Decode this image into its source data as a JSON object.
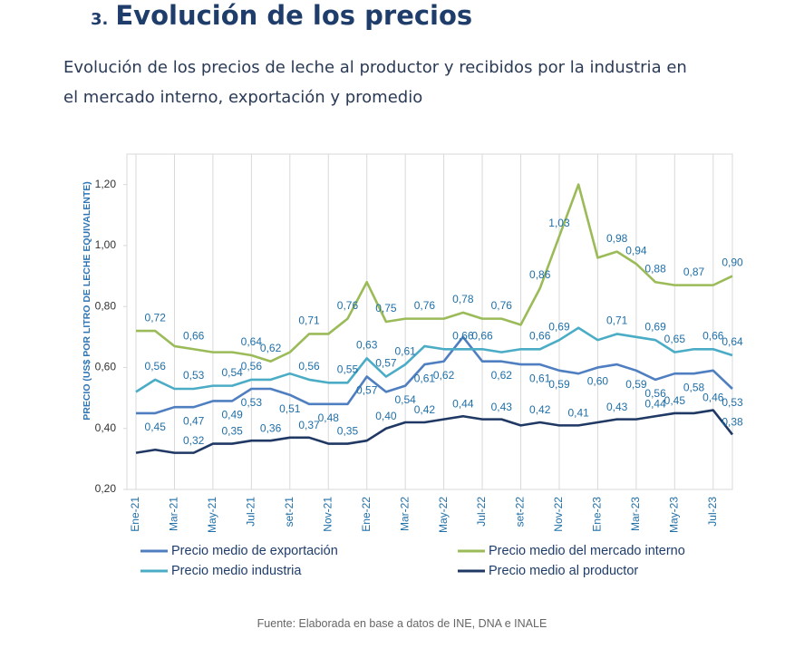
{
  "heading": {
    "number": "3.",
    "title": "Evolución de los precios"
  },
  "subtitle": [
    "Evolución de los precios de leche al productor y recibidos por la industria en",
    "el mercado interno, exportación y promedio"
  ],
  "chart_data": {
    "type": "line",
    "y_label": "PRECIO (US$ POR LITRO DE LECHE EQUIVALENTE)",
    "categories": [
      "Ene-21",
      null,
      "Mar-21",
      null,
      "May-21",
      null,
      "Jul-21",
      null,
      "set-21",
      null,
      "Nov-21",
      null,
      "Ene-22",
      null,
      "Mar-22",
      null,
      "May-22",
      null,
      "Jul-22",
      null,
      "set-22",
      null,
      "Nov-22",
      null,
      "Ene-23",
      null,
      "Mar-23",
      null,
      "May-23",
      null,
      "Jul-23",
      null
    ],
    "ylim": [
      0.2,
      1.3
    ],
    "yticks": [
      {
        "value": 0.2,
        "label": "0,20"
      },
      {
        "value": 0.4,
        "label": "0,40"
      },
      {
        "value": 0.6,
        "label": "0,60"
      },
      {
        "value": 0.8,
        "label": "0,80"
      },
      {
        "value": 1.0,
        "label": "1,00"
      },
      {
        "value": 1.2,
        "label": "1,20"
      }
    ],
    "grid": "x",
    "series": [
      {
        "name": "Precio medio de exportación",
        "color": "#4f7fc0",
        "values": [
          0.45,
          0.45,
          0.47,
          0.47,
          0.49,
          0.49,
          0.53,
          0.53,
          0.51,
          0.48,
          0.48,
          0.48,
          0.57,
          0.52,
          0.54,
          0.61,
          0.62,
          0.7,
          0.62,
          0.62,
          0.61,
          0.61,
          0.59,
          0.58,
          0.6,
          0.61,
          0.59,
          0.56,
          0.58,
          0.58,
          0.59,
          0.53
        ],
        "value_labels": [
          null,
          "0,45",
          null,
          "0,47",
          null,
          "0,49",
          "0,53",
          null,
          "0,51",
          null,
          "0,48",
          null,
          "0,57",
          null,
          "0,54",
          "0,61",
          "0,62",
          null,
          null,
          "0,62",
          null,
          "0,61",
          "0,59",
          null,
          "0,60",
          null,
          "0,59",
          "0,56",
          null,
          "0,58",
          null,
          "0,53"
        ]
      },
      {
        "name": "Precio medio del mercado interno",
        "color": "#9bbb59",
        "values": [
          0.72,
          0.72,
          0.67,
          0.66,
          0.65,
          0.65,
          0.64,
          0.62,
          0.65,
          0.71,
          0.71,
          0.76,
          0.88,
          0.75,
          0.76,
          0.76,
          0.76,
          0.78,
          0.76,
          0.76,
          0.74,
          0.86,
          1.03,
          1.2,
          0.96,
          0.98,
          0.94,
          0.88,
          0.87,
          0.87,
          0.87,
          0.9
        ],
        "value_labels": [
          null,
          "0,72",
          null,
          "0,66",
          null,
          null,
          "0,64",
          "0,62",
          null,
          "0,71",
          null,
          "0,76",
          null,
          "0,75",
          null,
          "0,76",
          null,
          "0,78",
          null,
          "0,76",
          null,
          "0,86",
          "1,03",
          null,
          null,
          "0,98",
          "0,94",
          "0,88",
          null,
          "0,87",
          null,
          "0,90"
        ]
      },
      {
        "name": "Precio medio industria",
        "color": "#4bacc6",
        "values": [
          0.52,
          0.56,
          0.53,
          0.53,
          0.54,
          0.54,
          0.56,
          0.56,
          0.58,
          0.56,
          0.55,
          0.55,
          0.63,
          0.57,
          0.61,
          0.67,
          0.66,
          0.66,
          0.66,
          0.65,
          0.66,
          0.66,
          0.69,
          0.73,
          0.69,
          0.71,
          0.7,
          0.69,
          0.65,
          0.66,
          0.66,
          0.64
        ],
        "value_labels": [
          null,
          "0,56",
          null,
          "0,53",
          null,
          "0,54",
          "0,56",
          null,
          null,
          "0,56",
          null,
          "0,55",
          "0,63",
          "0,57",
          "0,61",
          null,
          null,
          "0,66",
          "0,66",
          null,
          null,
          "0,66",
          "0,69",
          null,
          null,
          "0,71",
          null,
          "0,69",
          "0,65",
          null,
          "0,66",
          "0,64"
        ]
      },
      {
        "name": "Precio medio al productor",
        "color": "#1f3864",
        "values": [
          0.32,
          0.33,
          0.32,
          0.32,
          0.35,
          0.35,
          0.36,
          0.36,
          0.37,
          0.37,
          0.35,
          0.35,
          0.36,
          0.4,
          0.42,
          0.42,
          0.43,
          0.44,
          0.43,
          0.43,
          0.41,
          0.42,
          0.41,
          0.41,
          0.42,
          0.43,
          0.43,
          0.44,
          0.45,
          0.45,
          0.46,
          0.38
        ],
        "value_labels": [
          null,
          null,
          null,
          "0,32",
          null,
          "0,35",
          null,
          "0,36",
          null,
          "0,37",
          null,
          "0,35",
          null,
          "0,40",
          null,
          "0,42",
          null,
          "0,44",
          null,
          "0,43",
          null,
          "0,42",
          null,
          "0,41",
          null,
          "0,43",
          null,
          "0,44",
          "0,45",
          null,
          "0,46",
          "0,38"
        ]
      }
    ]
  },
  "source": "Fuente: Elaborada en base a datos de INE, DNA e INALE"
}
